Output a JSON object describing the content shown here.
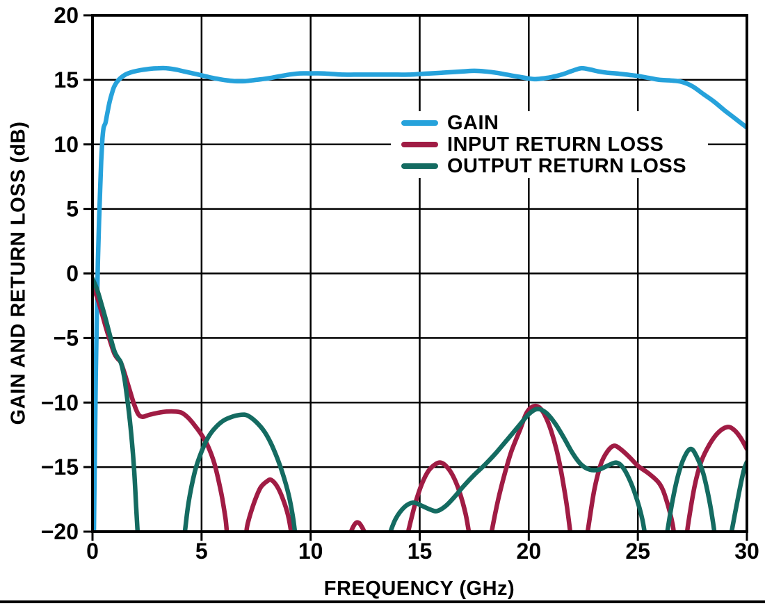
{
  "chart_data": {
    "type": "line",
    "xlabel": "FREQUENCY (GHz)",
    "ylabel": "GAIN AND RETURN LOSS (dB)",
    "xlim": [
      0,
      30
    ],
    "ylim": [
      -20,
      20
    ],
    "xticks": [
      0,
      5,
      10,
      15,
      20,
      25,
      30
    ],
    "xtick_labels": [
      "0",
      "5",
      "10",
      "15",
      "20",
      "25",
      "30"
    ],
    "yticks": [
      20,
      15,
      10,
      5,
      0,
      -5,
      -10,
      -15,
      -20
    ],
    "ytick_labels": [
      "20",
      "15",
      "10",
      "5",
      "0",
      "−5",
      "−10",
      "−15",
      "−20"
    ],
    "grid": true,
    "legend_position": "inside-upper-right",
    "background": "#ffffff",
    "axis_color": "#000000",
    "series": [
      {
        "name": "GAIN",
        "color": "#26A2DB",
        "points": [
          [
            0.05,
            -22
          ],
          [
            0.1,
            -15
          ],
          [
            0.15,
            -8
          ],
          [
            0.2,
            -3
          ],
          [
            0.25,
            1
          ],
          [
            0.3,
            4
          ],
          [
            0.35,
            6.5
          ],
          [
            0.4,
            8.7
          ],
          [
            0.45,
            10.3
          ],
          [
            0.5,
            11.2
          ],
          [
            0.55,
            11.5
          ],
          [
            0.6,
            11.7
          ],
          [
            0.7,
            12.6
          ],
          [
            0.8,
            13.4
          ],
          [
            0.9,
            14.0
          ],
          [
            1.0,
            14.5
          ],
          [
            1.2,
            15.0
          ],
          [
            1.5,
            15.4
          ],
          [
            1.8,
            15.6
          ],
          [
            2.2,
            15.75
          ],
          [
            2.6,
            15.85
          ],
          [
            3.0,
            15.9
          ],
          [
            3.4,
            15.9
          ],
          [
            3.8,
            15.8
          ],
          [
            4.2,
            15.65
          ],
          [
            4.6,
            15.5
          ],
          [
            5.0,
            15.35
          ],
          [
            5.5,
            15.15
          ],
          [
            6.0,
            15.0
          ],
          [
            6.5,
            14.9
          ],
          [
            7.0,
            14.9
          ],
          [
            7.5,
            15.0
          ],
          [
            8.0,
            15.1
          ],
          [
            8.5,
            15.25
          ],
          [
            9.0,
            15.4
          ],
          [
            9.5,
            15.5
          ],
          [
            10.0,
            15.5
          ],
          [
            10.5,
            15.5
          ],
          [
            11.0,
            15.45
          ],
          [
            11.5,
            15.4
          ],
          [
            12.0,
            15.4
          ],
          [
            12.5,
            15.4
          ],
          [
            13.0,
            15.4
          ],
          [
            13.5,
            15.4
          ],
          [
            14.0,
            15.4
          ],
          [
            14.5,
            15.4
          ],
          [
            15.0,
            15.45
          ],
          [
            15.5,
            15.5
          ],
          [
            16.0,
            15.55
          ],
          [
            16.5,
            15.6
          ],
          [
            17.0,
            15.65
          ],
          [
            17.5,
            15.7
          ],
          [
            18.0,
            15.65
          ],
          [
            18.5,
            15.55
          ],
          [
            19.0,
            15.4
          ],
          [
            19.5,
            15.25
          ],
          [
            20.0,
            15.1
          ],
          [
            20.3,
            15.05
          ],
          [
            20.6,
            15.1
          ],
          [
            21.0,
            15.2
          ],
          [
            21.5,
            15.4
          ],
          [
            22.0,
            15.7
          ],
          [
            22.4,
            15.9
          ],
          [
            22.8,
            15.8
          ],
          [
            23.2,
            15.65
          ],
          [
            23.6,
            15.55
          ],
          [
            24.0,
            15.5
          ],
          [
            24.5,
            15.4
          ],
          [
            25.0,
            15.3
          ],
          [
            25.5,
            15.15
          ],
          [
            26.0,
            15.0
          ],
          [
            26.5,
            14.95
          ],
          [
            27.0,
            14.85
          ],
          [
            27.5,
            14.5
          ],
          [
            28.0,
            13.9
          ],
          [
            28.5,
            13.3
          ],
          [
            29.0,
            12.6
          ],
          [
            29.5,
            11.95
          ],
          [
            30.0,
            11.3
          ]
        ]
      },
      {
        "name": "INPUT RETURN LOSS",
        "color": "#A01C44",
        "points": [
          [
            0,
            -1.0
          ],
          [
            0.2,
            -1.8
          ],
          [
            0.4,
            -2.9
          ],
          [
            0.6,
            -4.1
          ],
          [
            0.8,
            -5.2
          ],
          [
            1.0,
            -6.2
          ],
          [
            1.15,
            -6.6
          ],
          [
            1.3,
            -6.9
          ],
          [
            1.5,
            -7.9
          ],
          [
            1.7,
            -9.0
          ],
          [
            1.9,
            -10.1
          ],
          [
            2.1,
            -10.9
          ],
          [
            2.3,
            -11.1
          ],
          [
            2.6,
            -10.95
          ],
          [
            3.0,
            -10.8
          ],
          [
            3.4,
            -10.7
          ],
          [
            3.8,
            -10.7
          ],
          [
            4.1,
            -10.8
          ],
          [
            4.4,
            -11.2
          ],
          [
            4.7,
            -11.8
          ],
          [
            5.0,
            -12.5
          ],
          [
            5.3,
            -13.4
          ],
          [
            5.6,
            -14.8
          ],
          [
            5.9,
            -17.0
          ],
          [
            6.1,
            -19.0
          ],
          [
            6.3,
            -21.5
          ],
          [
            6.9,
            -21.5
          ],
          [
            7.1,
            -19.5
          ],
          [
            7.4,
            -17.8
          ],
          [
            7.7,
            -16.6
          ],
          [
            8.0,
            -16.1
          ],
          [
            8.2,
            -16.0
          ],
          [
            8.5,
            -16.6
          ],
          [
            8.8,
            -17.8
          ],
          [
            9.0,
            -19.0
          ],
          [
            9.2,
            -21.0
          ],
          [
            9.3,
            -22
          ],
          [
            11.5,
            -22
          ],
          [
            11.7,
            -20.8
          ],
          [
            11.9,
            -19.8
          ],
          [
            12.1,
            -19.3
          ],
          [
            12.3,
            -19.5
          ],
          [
            12.6,
            -20.6
          ],
          [
            12.8,
            -22
          ],
          [
            14.2,
            -22
          ],
          [
            14.5,
            -19.8
          ],
          [
            14.8,
            -17.8
          ],
          [
            15.1,
            -16.3
          ],
          [
            15.4,
            -15.3
          ],
          [
            15.7,
            -14.8
          ],
          [
            15.95,
            -14.65
          ],
          [
            16.2,
            -14.9
          ],
          [
            16.5,
            -15.6
          ],
          [
            16.8,
            -16.8
          ],
          [
            17.1,
            -18.6
          ],
          [
            17.3,
            -20.5
          ],
          [
            17.45,
            -22
          ],
          [
            18.1,
            -22
          ],
          [
            18.3,
            -20.0
          ],
          [
            18.6,
            -17.5
          ],
          [
            18.9,
            -15.5
          ],
          [
            19.2,
            -13.8
          ],
          [
            19.6,
            -12.1
          ],
          [
            19.9,
            -10.8
          ],
          [
            20.2,
            -10.3
          ],
          [
            20.5,
            -10.4
          ],
          [
            20.8,
            -11.2
          ],
          [
            21.1,
            -12.6
          ],
          [
            21.4,
            -14.6
          ],
          [
            21.7,
            -17.5
          ],
          [
            21.9,
            -20.0
          ],
          [
            22.05,
            -22
          ],
          [
            22.5,
            -22
          ],
          [
            22.7,
            -20.0
          ],
          [
            23.0,
            -16.8
          ],
          [
            23.3,
            -14.8
          ],
          [
            23.6,
            -13.8
          ],
          [
            23.9,
            -13.35
          ],
          [
            24.2,
            -13.6
          ],
          [
            24.6,
            -14.2
          ],
          [
            25.0,
            -14.9
          ],
          [
            25.5,
            -15.5
          ],
          [
            26.0,
            -16.3
          ],
          [
            26.3,
            -17.5
          ],
          [
            26.6,
            -19.5
          ],
          [
            26.8,
            -22
          ],
          [
            27.1,
            -22
          ],
          [
            27.3,
            -19.5
          ],
          [
            27.6,
            -16.5
          ],
          [
            27.9,
            -14.6
          ],
          [
            28.3,
            -13.2
          ],
          [
            28.7,
            -12.3
          ],
          [
            29.1,
            -11.9
          ],
          [
            29.4,
            -12.1
          ],
          [
            29.7,
            -12.7
          ],
          [
            30.0,
            -13.6
          ]
        ]
      },
      {
        "name": "OUTPUT RETURN LOSS",
        "color": "#146B61",
        "points": [
          [
            0,
            -0.4
          ],
          [
            0.2,
            -1.2
          ],
          [
            0.4,
            -2.3
          ],
          [
            0.6,
            -3.5
          ],
          [
            0.8,
            -4.8
          ],
          [
            1.0,
            -6.0
          ],
          [
            1.15,
            -6.5
          ],
          [
            1.3,
            -6.9
          ],
          [
            1.45,
            -8.0
          ],
          [
            1.6,
            -9.8
          ],
          [
            1.75,
            -12.0
          ],
          [
            1.9,
            -15.0
          ],
          [
            2.0,
            -18.0
          ],
          [
            2.1,
            -21.0
          ],
          [
            2.15,
            -22
          ],
          [
            4.05,
            -22
          ],
          [
            4.2,
            -20.5
          ],
          [
            4.4,
            -17.8
          ],
          [
            4.7,
            -15.3
          ],
          [
            5.0,
            -13.8
          ],
          [
            5.3,
            -12.7
          ],
          [
            5.6,
            -12.0
          ],
          [
            6.0,
            -11.4
          ],
          [
            6.4,
            -11.1
          ],
          [
            6.8,
            -10.95
          ],
          [
            7.1,
            -11.0
          ],
          [
            7.5,
            -11.5
          ],
          [
            7.9,
            -12.3
          ],
          [
            8.3,
            -13.6
          ],
          [
            8.7,
            -15.4
          ],
          [
            9.0,
            -17.2
          ],
          [
            9.2,
            -19.0
          ],
          [
            9.35,
            -21.0
          ],
          [
            9.45,
            -22
          ],
          [
            13.3,
            -22
          ],
          [
            13.6,
            -20.3
          ],
          [
            13.9,
            -19.0
          ],
          [
            14.3,
            -18.1
          ],
          [
            14.7,
            -17.75
          ],
          [
            15.1,
            -18.0
          ],
          [
            15.5,
            -18.3
          ],
          [
            15.8,
            -18.4
          ],
          [
            16.2,
            -18.0
          ],
          [
            16.6,
            -17.3
          ],
          [
            17.0,
            -16.5
          ],
          [
            17.5,
            -15.6
          ],
          [
            18.0,
            -14.8
          ],
          [
            18.5,
            -13.9
          ],
          [
            19.0,
            -12.9
          ],
          [
            19.5,
            -11.9
          ],
          [
            20.0,
            -10.9
          ],
          [
            20.4,
            -10.5
          ],
          [
            20.8,
            -10.8
          ],
          [
            21.2,
            -11.6
          ],
          [
            21.6,
            -12.7
          ],
          [
            22.0,
            -13.9
          ],
          [
            22.4,
            -14.8
          ],
          [
            22.8,
            -15.2
          ],
          [
            23.2,
            -15.2
          ],
          [
            23.6,
            -14.9
          ],
          [
            24.0,
            -14.65
          ],
          [
            24.3,
            -15.0
          ],
          [
            24.6,
            -15.9
          ],
          [
            24.9,
            -17.2
          ],
          [
            25.2,
            -19.0
          ],
          [
            25.4,
            -21.0
          ],
          [
            25.5,
            -22
          ],
          [
            26.15,
            -22
          ],
          [
            26.35,
            -20.0
          ],
          [
            26.6,
            -17.5
          ],
          [
            26.9,
            -15.3
          ],
          [
            27.2,
            -14.0
          ],
          [
            27.45,
            -13.6
          ],
          [
            27.7,
            -14.2
          ],
          [
            28.0,
            -15.5
          ],
          [
            28.3,
            -17.8
          ],
          [
            28.55,
            -20.5
          ],
          [
            28.65,
            -22
          ],
          [
            29.1,
            -22
          ],
          [
            29.3,
            -20.0
          ],
          [
            29.6,
            -17.3
          ],
          [
            29.85,
            -15.3
          ],
          [
            30.0,
            -14.6
          ]
        ]
      }
    ]
  }
}
